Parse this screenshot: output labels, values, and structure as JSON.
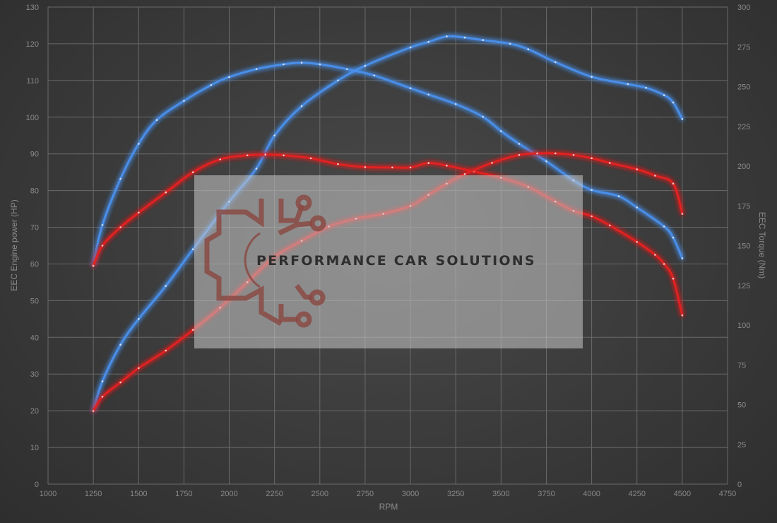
{
  "chart_data": {
    "type": "line",
    "xlabel": "RPM",
    "ylabel_left": "EEC Engine power (HP)",
    "ylabel_right": "EEC Torque (Nm)",
    "xlim": [
      1000,
      4750
    ],
    "ylim_left": [
      0,
      130
    ],
    "ylim_right": [
      0,
      300
    ],
    "x_ticks": [
      1000,
      1250,
      1500,
      1750,
      2000,
      2250,
      2500,
      2750,
      3000,
      3250,
      3500,
      3750,
      4000,
      4250,
      4500,
      4750
    ],
    "y_left_ticks": [
      0,
      10,
      20,
      30,
      40,
      50,
      60,
      70,
      80,
      90,
      100,
      110,
      120,
      130
    ],
    "y_right_ticks": [
      0,
      25,
      50,
      75,
      100,
      125,
      150,
      175,
      200,
      225,
      250,
      275,
      300
    ],
    "grid": true,
    "series": [
      {
        "axis": "right",
        "color": "#4a8ee8",
        "points": [
          [
            1250,
            138
          ],
          [
            1300,
            163
          ],
          [
            1400,
            192
          ],
          [
            1500,
            214
          ],
          [
            1600,
            229
          ],
          [
            1750,
            241
          ],
          [
            1900,
            251
          ],
          [
            2000,
            256
          ],
          [
            2150,
            261
          ],
          [
            2300,
            264
          ],
          [
            2400,
            265
          ],
          [
            2500,
            264
          ],
          [
            2650,
            261
          ],
          [
            2800,
            257
          ],
          [
            3000,
            249
          ],
          [
            3100,
            245
          ],
          [
            3250,
            239
          ],
          [
            3400,
            231
          ],
          [
            3500,
            222
          ],
          [
            3600,
            214
          ],
          [
            3750,
            203
          ],
          [
            3900,
            191
          ],
          [
            4000,
            185
          ],
          [
            4150,
            181
          ],
          [
            4250,
            174
          ],
          [
            4400,
            162
          ],
          [
            4450,
            155
          ],
          [
            4500,
            142
          ]
        ]
      },
      {
        "axis": "left",
        "color": "#4a8ee8",
        "points": [
          [
            1250,
            20
          ],
          [
            1300,
            28
          ],
          [
            1400,
            38
          ],
          [
            1500,
            45
          ],
          [
            1650,
            54
          ],
          [
            1800,
            64
          ],
          [
            2000,
            77
          ],
          [
            2150,
            86
          ],
          [
            2250,
            95
          ],
          [
            2400,
            103
          ],
          [
            2600,
            110
          ],
          [
            2750,
            114
          ],
          [
            3000,
            119
          ],
          [
            3100,
            120.5
          ],
          [
            3200,
            122
          ],
          [
            3300,
            121.7
          ],
          [
            3400,
            121
          ],
          [
            3550,
            120
          ],
          [
            3650,
            118.5
          ],
          [
            3800,
            115
          ],
          [
            4000,
            111
          ],
          [
            4200,
            109
          ],
          [
            4300,
            108
          ],
          [
            4400,
            106
          ],
          [
            4450,
            104
          ],
          [
            4500,
            99.5
          ]
        ]
      },
      {
        "axis": "left",
        "color": "#e02424",
        "points": [
          [
            1250,
            59.5
          ],
          [
            1300,
            65
          ],
          [
            1400,
            70
          ],
          [
            1500,
            74
          ],
          [
            1650,
            79.5
          ],
          [
            1800,
            85
          ],
          [
            1950,
            88.5
          ],
          [
            2100,
            89.6
          ],
          [
            2200,
            89.8
          ],
          [
            2300,
            89.6
          ],
          [
            2450,
            88.8
          ],
          [
            2600,
            87.2
          ],
          [
            2750,
            86.4
          ],
          [
            2900,
            86.3
          ],
          [
            3000,
            86.3
          ],
          [
            3100,
            87.5
          ],
          [
            3200,
            86.8
          ],
          [
            3350,
            85.2
          ],
          [
            3500,
            83.5
          ],
          [
            3650,
            81
          ],
          [
            3800,
            77
          ],
          [
            3900,
            74.5
          ],
          [
            4000,
            73
          ],
          [
            4100,
            70.5
          ],
          [
            4250,
            66
          ],
          [
            4350,
            62.5
          ],
          [
            4400,
            60
          ],
          [
            4450,
            56
          ],
          [
            4500,
            46
          ]
        ]
      },
      {
        "axis": "right",
        "color": "#e02424",
        "points": [
          [
            1250,
            46
          ],
          [
            1300,
            55
          ],
          [
            1400,
            64
          ],
          [
            1500,
            73
          ],
          [
            1650,
            84
          ],
          [
            1800,
            97
          ],
          [
            1950,
            111
          ],
          [
            2100,
            127
          ],
          [
            2250,
            143
          ],
          [
            2400,
            153
          ],
          [
            2550,
            162
          ],
          [
            2700,
            167
          ],
          [
            2850,
            170
          ],
          [
            3000,
            175
          ],
          [
            3100,
            182
          ],
          [
            3200,
            189
          ],
          [
            3300,
            195
          ],
          [
            3450,
            202
          ],
          [
            3600,
            207
          ],
          [
            3700,
            208
          ],
          [
            3800,
            208
          ],
          [
            3900,
            207
          ],
          [
            4000,
            205
          ],
          [
            4100,
            202
          ],
          [
            4250,
            198
          ],
          [
            4350,
            194
          ],
          [
            4450,
            189
          ],
          [
            4500,
            170
          ]
        ]
      }
    ]
  },
  "watermark": {
    "text": "PERFORMANCE CAR SOLUTIONS",
    "logo": "gear-circuit-logo"
  }
}
